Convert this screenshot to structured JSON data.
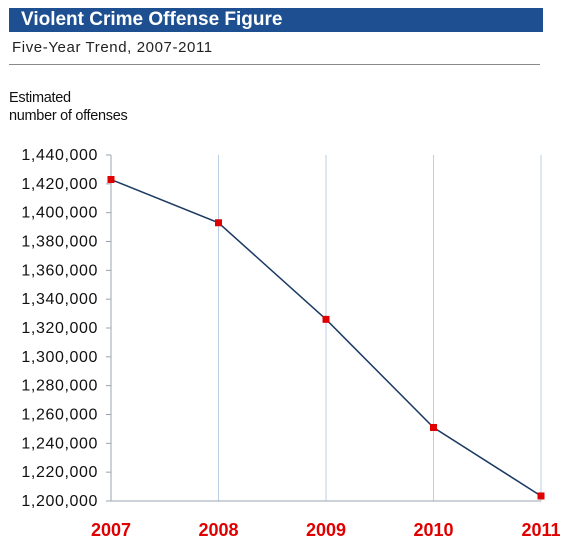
{
  "header": {
    "title": "Violent Crime Offense Figure",
    "subtitle": "Five-Year Trend, 2007-2011"
  },
  "colors": {
    "title_bg": "#1d4f91",
    "line": "#1b3a63",
    "marker": "#e00000",
    "x_tick_label": "#e00000",
    "grid": "#b8cfe4"
  },
  "chart_data": {
    "type": "line",
    "title": "Violent Crime Offense Figure",
    "subtitle": "Five-Year Trend, 2007-2011",
    "ylabel_lines": [
      "Estimated",
      "number of offenses"
    ],
    "xlabel": "",
    "categories": [
      "2007",
      "2008",
      "2009",
      "2010",
      "2011"
    ],
    "series": [
      {
        "values": [
          1423000,
          1393000,
          1326000,
          1251000,
          1203500
        ]
      }
    ],
    "ylim": [
      1200000,
      1440000
    ],
    "yticks": [
      1200000,
      1220000,
      1240000,
      1260000,
      1280000,
      1300000,
      1320000,
      1340000,
      1360000,
      1380000,
      1400000,
      1420000,
      1440000
    ],
    "ytick_labels": [
      "1,200,000",
      "1,220,000",
      "1,240,000",
      "1,260,000",
      "1,280,000",
      "1,300,000",
      "1,320,000",
      "1,340,000",
      "1,360,000",
      "1,380,000",
      "1,400,000",
      "1,420,000",
      "1,440,000"
    ],
    "grid": "vertical lines at each year",
    "legend": "none"
  }
}
